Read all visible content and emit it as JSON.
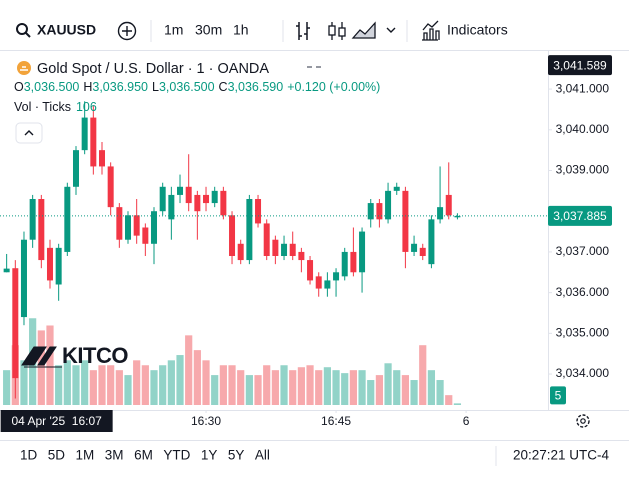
{
  "toolbar": {
    "symbol": "XAUUSD",
    "intervals": [
      "1m",
      "30m",
      "1h"
    ],
    "active_interval": 0,
    "indicators": "Indicators"
  },
  "chart_data": {
    "type": "candlestick",
    "title": "Gold Spot / U.S. Dollar · 1 · OANDA",
    "ohlc_letters": {
      "open": "O",
      "high": "H",
      "low": "L",
      "close": "C"
    },
    "ohlc_labels": {
      "open": "3,036.500",
      "high": "3,036.950",
      "low": "3,036.500",
      "close": "3,036.590",
      "change": "+0.120 (+0.00%)"
    },
    "volume_title": "Vol · Ticks",
    "watermark": "KITCO",
    "x": [
      "16:07",
      "16:08",
      "16:09",
      "16:10",
      "16:11",
      "16:12",
      "16:13",
      "16:14",
      "16:15",
      "16:16",
      "16:17",
      "16:18",
      "16:19",
      "16:20",
      "16:21",
      "16:22",
      "16:23",
      "16:24",
      "16:25",
      "16:26",
      "16:27",
      "16:28",
      "16:29",
      "16:30",
      "16:31",
      "16:32",
      "16:33",
      "16:34",
      "16:35",
      "16:36",
      "16:37",
      "16:38",
      "16:39",
      "16:40",
      "16:41",
      "16:42",
      "16:43",
      "16:44",
      "16:45",
      "16:46",
      "16:47",
      "16:48",
      "16:49",
      "16:50",
      "16:51",
      "16:52",
      "16:53",
      "16:54",
      "16:55",
      "16:56",
      "16:57",
      "16:58",
      "16:59"
    ],
    "open": [
      3036.5,
      3036.6,
      3035.4,
      3037.3,
      3038.3,
      3037.1,
      3036.2,
      3037.0,
      3038.6,
      3039.5,
      3040.3,
      3039.5,
      3039.1,
      3038.1,
      3037.3,
      3037.9,
      3037.6,
      3037.2,
      3038.0,
      3037.8,
      3038.4,
      3038.6,
      3038.4,
      3038.4,
      3038.2,
      3038.5,
      3037.9,
      3037.2,
      3036.8,
      3038.3,
      3037.7,
      3037.3,
      3036.9,
      3037.2,
      3037.0,
      3036.8,
      3036.4,
      3036.1,
      3036.3,
      3036.4,
      3037.0,
      3036.5,
      3037.8,
      3038.2,
      3037.8,
      3038.5,
      3038.5,
      3037.0,
      3037.1,
      3036.7,
      3037.8,
      3038.4,
      3037.85
    ],
    "high": [
      3036.95,
      3036.8,
      3037.5,
      3038.4,
      3038.4,
      3037.3,
      3037.2,
      3038.7,
      3039.6,
      3040.7,
      3040.6,
      3039.7,
      3039.2,
      3038.2,
      3038.0,
      3038.3,
      3037.7,
      3038.1,
      3038.7,
      3038.6,
      3038.9,
      3039.4,
      3038.5,
      3038.6,
      3038.6,
      3038.6,
      3038.0,
      3037.3,
      3038.4,
      3038.4,
      3037.8,
      3037.4,
      3037.4,
      3037.5,
      3037.1,
      3036.9,
      3036.5,
      3036.5,
      3036.6,
      3037.1,
      3037.6,
      3037.6,
      3038.3,
      3038.3,
      3038.7,
      3038.7,
      3038.6,
      3037.4,
      3037.2,
      3037.9,
      3039.1,
      3039.2,
      3037.95
    ],
    "low": [
      3036.5,
      3033.4,
      3035.2,
      3037.1,
      3036.6,
      3036.1,
      3035.8,
      3036.9,
      3038.4,
      3039.4,
      3038.9,
      3038.9,
      3037.9,
      3037.1,
      3037.2,
      3037.2,
      3036.9,
      3036.7,
      3037.9,
      3037.3,
      3038.2,
      3038.0,
      3037.3,
      3038.0,
      3038.1,
      3037.8,
      3036.7,
      3036.7,
      3036.7,
      3037.6,
      3036.8,
      3036.7,
      3036.8,
      3036.8,
      3036.5,
      3036.2,
      3035.9,
      3035.9,
      3035.9,
      3036.3,
      3036.4,
      3036.0,
      3037.6,
      3037.6,
      3037.7,
      3038.4,
      3036.6,
      3036.9,
      3036.8,
      3036.6,
      3037.7,
      3037.8,
      3037.8
    ],
    "close": [
      3036.59,
      3033.9,
      3037.3,
      3038.3,
      3036.8,
      3036.3,
      3037.1,
      3038.6,
      3039.5,
      3040.3,
      3039.1,
      3039.1,
      3038.1,
      3037.3,
      3037.9,
      3037.4,
      3037.2,
      3038.0,
      3038.6,
      3038.4,
      3038.6,
      3038.2,
      3038.0,
      3038.2,
      3038.5,
      3037.9,
      3036.9,
      3036.8,
      3038.3,
      3037.7,
      3036.9,
      3036.9,
      3037.2,
      3036.9,
      3036.8,
      3036.3,
      3036.1,
      3036.3,
      3036.5,
      3037.0,
      3036.5,
      3037.5,
      3038.2,
      3037.8,
      3038.5,
      3038.6,
      3037.0,
      3037.2,
      3036.9,
      3037.8,
      3038.1,
      3037.9,
      3037.885
    ],
    "volume": [
      106,
      182,
      136,
      264,
      227,
      242,
      121,
      136,
      121,
      136,
      106,
      121,
      121,
      106,
      91,
      136,
      121,
      106,
      121,
      136,
      152,
      212,
      167,
      136,
      91,
      121,
      121,
      106,
      91,
      91,
      121,
      106,
      121,
      106,
      115,
      121,
      106,
      115,
      106,
      97,
      106,
      106,
      76,
      91,
      127,
      106,
      91,
      76,
      182,
      106,
      76,
      30,
      5
    ],
    "up_color": "#089981",
    "down_color": "#f23645",
    "volume_up_color": "#92d3c8",
    "volume_down_color": "#f7a9ac",
    "xlim": [
      "16:06:14",
      "17:09:27"
    ],
    "xticks": [
      "16:30",
      "16:45",
      {
        "value": "17:00",
        "label": "6"
      }
    ],
    "ylim": [
      3033.24,
      3041.96
    ],
    "yticks": [
      {
        "value": 3041,
        "label": "3,041.000"
      },
      {
        "value": 3040,
        "label": "3,040.000"
      },
      {
        "value": 3039,
        "label": "3,039.000"
      },
      {
        "value": 3038,
        "label": "3,038.000"
      },
      {
        "value": 3037,
        "label": "3,037.000"
      },
      {
        "value": 3036,
        "label": "3,036.000"
      },
      {
        "value": 3035,
        "label": "3,035.000"
      },
      {
        "value": 3034,
        "label": "3,034.000"
      }
    ],
    "volume_lim": [
      0,
      350
    ],
    "last_price": {
      "value": 3037.885,
      "label": "3,037.885"
    },
    "crosshair": {
      "price": {
        "value": 3041.589,
        "label": "3,041.589"
      },
      "time": {
        "value": "16:07",
        "label": "04 Apr '25  16:07"
      }
    }
  },
  "ranges": [
    "1D",
    "5D",
    "1M",
    "3M",
    "6M",
    "YTD",
    "1Y",
    "5Y",
    "All"
  ],
  "clock": "20:27:21 UTC-4"
}
